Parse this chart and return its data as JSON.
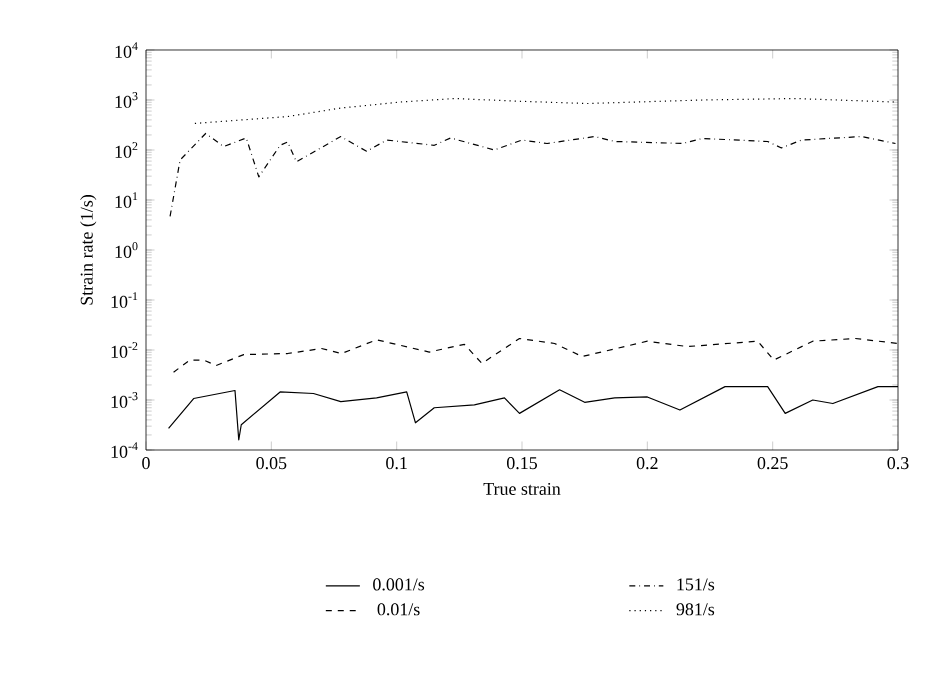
{
  "chart_data": {
    "type": "line",
    "xlabel": "True strain",
    "ylabel": "Strain rate (1/s)",
    "log": "y",
    "legend": "bottom",
    "grid": false,
    "xlim": [
      0,
      0.3
    ],
    "xticks": [
      0,
      0.05,
      0.1,
      0.15,
      0.2,
      0.25,
      0.3
    ],
    "ylim": [
      0.0001,
      10000
    ],
    "yticks": [
      {
        "value": 0.0001,
        "label": "10$^{-4}$"
      },
      {
        "value": 0.001,
        "label": "10$^{-3}$"
      },
      {
        "value": 0.01,
        "label": "10$^{-2}$"
      },
      {
        "value": 0.1,
        "label": "10$^{-1}$"
      },
      {
        "value": 1,
        "label": "10$^{0}$"
      },
      {
        "value": 10,
        "label": "10$^{1}$"
      },
      {
        "value": 100,
        "label": "10$^{2}$"
      },
      {
        "value": 1000,
        "label": "10$^{3}$"
      },
      {
        "value": 10000,
        "label": "10$^{4}$"
      }
    ],
    "series": [
      {
        "name": "0.001/s",
        "color": "#000000",
        "line_style": "solid",
        "x": [
          0.009,
          0.019,
          0.0355,
          0.037,
          0.038,
          0.0535,
          0.0668,
          0.0777,
          0.092,
          0.104,
          0.1075,
          0.115,
          0.131,
          0.143,
          0.149,
          0.165,
          0.175,
          0.187,
          0.2,
          0.213,
          0.231,
          0.248,
          0.255,
          0.266,
          0.274,
          0.292,
          0.3
        ],
        "values": [
          0.00027,
          0.00107,
          0.00155,
          0.00016,
          0.00032,
          0.00145,
          0.00135,
          0.00093,
          0.0011,
          0.00145,
          0.00035,
          0.0007,
          0.0008,
          0.0011,
          0.00054,
          0.0016,
          0.0009,
          0.0011,
          0.00115,
          0.00063,
          0.00185,
          0.00185,
          0.00054,
          0.001,
          0.00085,
          0.00185,
          0.00185
        ]
      },
      {
        "name": "0.01/s",
        "color": "#000000",
        "line_style": "dashed",
        "x": [
          0.011,
          0.0175,
          0.023,
          0.028,
          0.039,
          0.0565,
          0.07,
          0.078,
          0.092,
          0.113,
          0.127,
          0.134,
          0.149,
          0.163,
          0.174,
          0.2,
          0.216,
          0.244,
          0.2505,
          0.266,
          0.283,
          0.3
        ],
        "values": [
          0.0036,
          0.0063,
          0.0063,
          0.0049,
          0.0081,
          0.0085,
          0.0107,
          0.0085,
          0.016,
          0.0091,
          0.013,
          0.0054,
          0.017,
          0.0135,
          0.0074,
          0.015,
          0.0117,
          0.015,
          0.0063,
          0.015,
          0.017,
          0.0135
        ]
      },
      {
        "name": "151/s",
        "color": "#000000",
        "line_style": "dashdot",
        "x": [
          0.0096,
          0.0136,
          0.0238,
          0.031,
          0.04,
          0.045,
          0.0535,
          0.0565,
          0.06,
          0.0777,
          0.088,
          0.096,
          0.115,
          0.1215,
          0.139,
          0.15,
          0.16,
          0.179,
          0.187,
          0.214,
          0.222,
          0.248,
          0.2535,
          0.2615,
          0.2855,
          0.299
        ],
        "values": [
          4.7,
          63,
          214,
          117,
          174,
          29,
          124,
          145,
          58,
          186,
          94,
          158,
          124,
          174,
          100,
          158,
          135,
          186,
          148,
          135,
          170,
          148,
          110,
          158,
          186,
          135
        ]
      },
      {
        "name": "981/s",
        "color": "#000000",
        "line_style": "dotted",
        "x": [
          0.0195,
          0.0565,
          0.0777,
          0.1015,
          0.123,
          0.15,
          0.176,
          0.222,
          0.259,
          0.299
        ],
        "values": [
          340,
          467,
          690,
          910,
          1070,
          940,
          850,
          1000,
          1070,
          910
        ]
      }
    ]
  }
}
